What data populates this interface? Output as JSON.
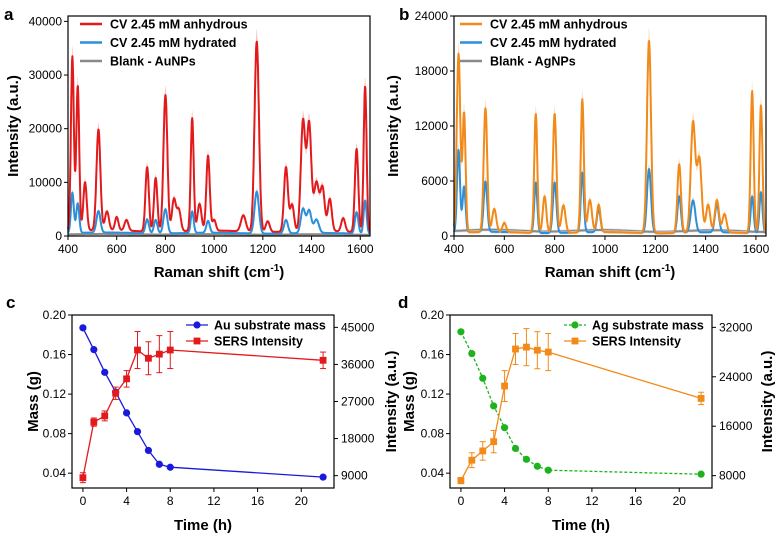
{
  "chart_data": [
    {
      "panel": "a",
      "type": "line",
      "xlabel": "Raman shift (cm",
      "xlabel_sup": "-1",
      "xlabel_end": ")",
      "ylabel": "Intensity (a.u.)",
      "xlim": [
        400,
        1640
      ],
      "ylim": [
        0,
        41000
      ],
      "xticks": [
        "400",
        "600",
        "800",
        "1000",
        "1200",
        "1400",
        "1600"
      ],
      "xtick_values": [
        400,
        600,
        800,
        1000,
        1200,
        1400,
        1600
      ],
      "yticks": [
        "0",
        "10000",
        "20000",
        "30000",
        "40000"
      ],
      "ytick_values": [
        0,
        10000,
        20000,
        30000,
        40000
      ],
      "legend_position": "top-left",
      "baseline": {
        "start": 1000,
        "end": 800,
        "wave": 120,
        "period": 70
      },
      "series": [
        {
          "name": "CV 2.45 mM anhydrous",
          "color": "#e31a1c",
          "band": "#f6b3b3",
          "baseline_scale": 1.0,
          "peaks": [
            [
              418,
              32500,
              6
            ],
            [
              440,
              27000,
              6
            ],
            [
              470,
              9000,
              7
            ],
            [
              525,
              18800,
              8
            ],
            [
              560,
              3500,
              8
            ],
            [
              600,
              2500,
              7
            ],
            [
              640,
              2000,
              8
            ],
            [
              725,
              12000,
              7
            ],
            [
              760,
              10000,
              7
            ],
            [
              800,
              25500,
              8
            ],
            [
              835,
              6000,
              8
            ],
            [
              855,
              4000,
              8
            ],
            [
              910,
              21000,
              6
            ],
            [
              940,
              5000,
              8
            ],
            [
              975,
              14000,
              7
            ],
            [
              1000,
              2000,
              7
            ],
            [
              1120,
              3000,
              10
            ],
            [
              1175,
              35500,
              9
            ],
            [
              1220,
              2000,
              8
            ],
            [
              1295,
              12000,
              8
            ],
            [
              1320,
              5000,
              8
            ],
            [
              1365,
              20500,
              9
            ],
            [
              1390,
              20000,
              9
            ],
            [
              1420,
              9000,
              10
            ],
            [
              1445,
              8000,
              9
            ],
            [
              1475,
              6000,
              8
            ],
            [
              1530,
              2500,
              8
            ],
            [
              1585,
              15500,
              7
            ],
            [
              1620,
              27200,
              6
            ]
          ]
        },
        {
          "name": "CV 2.45 mM hydrated",
          "color": "#2b8fd9",
          "band": "#b9d9f1",
          "baseline_scale": 0.6,
          "peaks": [
            [
              418,
              7500,
              6
            ],
            [
              440,
              5500,
              6
            ],
            [
              525,
              4000,
              8
            ],
            [
              725,
              2600,
              7
            ],
            [
              760,
              2500,
              7
            ],
            [
              800,
              4500,
              8
            ],
            [
              910,
              4000,
              6
            ],
            [
              975,
              2200,
              7
            ],
            [
              1175,
              7800,
              9
            ],
            [
              1295,
              2500,
              8
            ],
            [
              1365,
              4500,
              9
            ],
            [
              1390,
              4200,
              9
            ],
            [
              1420,
              2500,
              10
            ],
            [
              1585,
              4000,
              7
            ],
            [
              1620,
              6200,
              6
            ]
          ]
        },
        {
          "name": "Blank - AuNPs",
          "color": "#8a8a8a",
          "band": "#dddddd",
          "baseline_scale": 0.35,
          "peaks": []
        }
      ]
    },
    {
      "panel": "b",
      "type": "line",
      "xlabel": "Raman shift (cm",
      "xlabel_sup": "-1",
      "xlabel_end": ")",
      "ylabel": "Intensity (a.u.)",
      "xlim": [
        400,
        1640
      ],
      "ylim": [
        0,
        24000
      ],
      "xticks": [
        "400",
        "600",
        "800",
        "1000",
        "1200",
        "1400",
        "1600"
      ],
      "xtick_values": [
        400,
        600,
        800,
        1000,
        1200,
        1400,
        1600
      ],
      "yticks": [
        "0",
        "6000",
        "12000",
        "18000",
        "24000"
      ],
      "ytick_values": [
        0,
        6000,
        12000,
        18000,
        24000
      ],
      "legend_position": "top-right",
      "baseline": {
        "start": 400,
        "end": 350,
        "wave": 60,
        "period": 70
      },
      "series": [
        {
          "name": "CV 2.45 mM anhydrous",
          "color": "#f28a1a",
          "band": "#fbd4a8",
          "baseline_scale": 1.0,
          "peaks": [
            [
              418,
              19500,
              7
            ],
            [
              440,
              13000,
              6
            ],
            [
              525,
              13500,
              7
            ],
            [
              560,
              2500,
              8
            ],
            [
              600,
              1000,
              7
            ],
            [
              725,
              13000,
              6
            ],
            [
              760,
              4000,
              7
            ],
            [
              800,
              13000,
              7
            ],
            [
              835,
              3000,
              8
            ],
            [
              910,
              14500,
              6
            ],
            [
              940,
              3500,
              8
            ],
            [
              975,
              3000,
              7
            ],
            [
              1175,
              21000,
              8
            ],
            [
              1295,
              7500,
              7
            ],
            [
              1350,
              12000,
              9
            ],
            [
              1375,
              8000,
              9
            ],
            [
              1410,
              3000,
              8
            ],
            [
              1445,
              3500,
              8
            ],
            [
              1475,
              2000,
              8
            ],
            [
              1585,
              15500,
              6
            ],
            [
              1620,
              14000,
              6
            ]
          ]
        },
        {
          "name": "CV 2.45 mM hydrated",
          "color": "#2b8fd9",
          "band": "#b9d9f1",
          "baseline_scale": 1.0,
          "peaks": [
            [
              418,
              9000,
              6
            ],
            [
              440,
              5000,
              6
            ],
            [
              525,
              5500,
              7
            ],
            [
              725,
              5500,
              6
            ],
            [
              800,
              5500,
              7
            ],
            [
              910,
              6500,
              6
            ],
            [
              975,
              2500,
              7
            ],
            [
              1175,
              7000,
              8
            ],
            [
              1295,
              4000,
              7
            ],
            [
              1350,
              3500,
              9
            ],
            [
              1445,
              3000,
              8
            ],
            [
              1585,
              4000,
              6
            ],
            [
              1620,
              4500,
              6
            ]
          ]
        },
        {
          "name": "Blank - AgNPs",
          "color": "#8a8a8a",
          "band": "#dddddd",
          "baseline_scale": 1.5,
          "peaks": []
        }
      ]
    },
    {
      "panel": "c",
      "type": "line",
      "xlabel": "Time (h)",
      "ylabel": "Mass (g)",
      "y2label": "Intensity (a.u.)",
      "xlim": [
        -1,
        23
      ],
      "ylim": [
        0.025,
        0.2
      ],
      "y2lim": [
        6000,
        48000
      ],
      "xticks": [
        "0",
        "4",
        "8",
        "12",
        "16",
        "20"
      ],
      "xtick_values": [
        0,
        4,
        8,
        12,
        16,
        20
      ],
      "yticks": [
        "0.04",
        "0.08",
        "0.12",
        "0.16",
        "0.20"
      ],
      "ytick_values": [
        0.04,
        0.08,
        0.12,
        0.16,
        0.2
      ],
      "y2ticks": [
        "9000",
        "18000",
        "27000",
        "36000",
        "45000"
      ],
      "y2tick_values": [
        9000,
        18000,
        27000,
        36000,
        45000
      ],
      "legend_position": "top-right",
      "series": [
        {
          "name": "Au substrate mass",
          "color": "#1a1adb",
          "marker": "circle",
          "axis": "left",
          "dashed": false,
          "x": [
            0,
            1,
            2,
            3,
            4,
            5,
            6,
            7,
            8,
            22
          ],
          "y": [
            0.187,
            0.165,
            0.142,
            0.122,
            0.101,
            0.082,
            0.063,
            0.049,
            0.046,
            0.036
          ],
          "err": []
        },
        {
          "name": "SERS Intensity",
          "color": "#e31a1c",
          "marker": "square",
          "axis": "right",
          "dashed": false,
          "x": [
            0,
            1,
            2,
            3,
            4,
            5,
            6,
            7,
            8,
            22
          ],
          "y": [
            8500,
            22000,
            23500,
            29000,
            32500,
            39500,
            37500,
            38500,
            39500,
            37000
          ],
          "err": [
            1200,
            1000,
            1200,
            1500,
            2000,
            4500,
            4000,
            4500,
            4500,
            2000
          ]
        }
      ]
    },
    {
      "panel": "d",
      "type": "line",
      "xlabel": "Time (h)",
      "ylabel": "Mass (g)",
      "y2label": "Intensity (a.u.)",
      "xlim": [
        -1,
        23
      ],
      "ylim": [
        0.025,
        0.2
      ],
      "y2lim": [
        6000,
        34000
      ],
      "xticks": [
        "0",
        "4",
        "8",
        "12",
        "16",
        "20"
      ],
      "xtick_values": [
        0,
        4,
        8,
        12,
        16,
        20
      ],
      "yticks": [
        "0.04",
        "0.08",
        "0.12",
        "0.16",
        "0.20"
      ],
      "ytick_values": [
        0.04,
        0.08,
        0.12,
        0.16,
        0.2
      ],
      "y2ticks": [
        "8000",
        "16000",
        "24000",
        "32000"
      ],
      "y2tick_values": [
        8000,
        16000,
        24000,
        32000
      ],
      "legend_position": "top-right",
      "series": [
        {
          "name": "Ag substrate mass",
          "color": "#1db31d",
          "marker": "circle",
          "axis": "left",
          "dashed": true,
          "x": [
            0,
            1,
            2,
            3,
            4,
            5,
            6,
            7,
            8,
            22
          ],
          "y": [
            0.183,
            0.161,
            0.136,
            0.108,
            0.086,
            0.065,
            0.054,
            0.047,
            0.043,
            0.039
          ],
          "err": []
        },
        {
          "name": "SERS Intensity",
          "color": "#f28a1a",
          "marker": "square",
          "axis": "right",
          "dashed": false,
          "x": [
            0,
            1,
            2,
            3,
            4,
            5,
            6,
            7,
            8,
            22
          ],
          "y": [
            7200,
            10500,
            12000,
            13500,
            22500,
            28500,
            28800,
            28300,
            28000,
            20500
          ],
          "err": [
            500,
            1200,
            1500,
            1800,
            2500,
            2500,
            3000,
            3000,
            3000,
            1000
          ]
        }
      ]
    }
  ]
}
